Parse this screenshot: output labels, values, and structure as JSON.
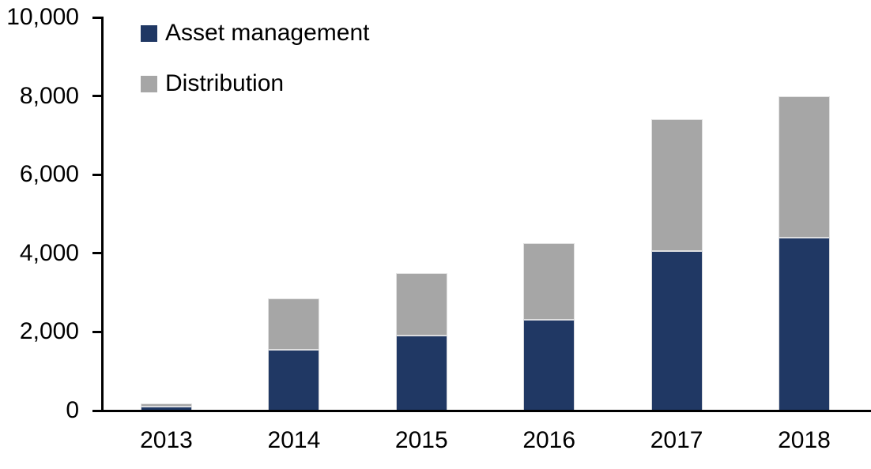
{
  "chart_data": {
    "type": "bar",
    "stacked": true,
    "categories": [
      "2013",
      "2014",
      "2015",
      "2016",
      "2017",
      "2018"
    ],
    "series": [
      {
        "name": "Asset management",
        "color": "#203864",
        "values": [
          100,
          1550,
          1900,
          2300,
          4050,
          4400
        ]
      },
      {
        "name": "Distribution",
        "color": "#a6a6a6",
        "values": [
          90,
          1300,
          1600,
          1950,
          3350,
          3600
        ]
      }
    ],
    "totals": [
      190,
      2850,
      3500,
      4250,
      7400,
      8000
    ],
    "yticks": [
      {
        "value": 0,
        "label": "0"
      },
      {
        "value": 2000,
        "label": "2,000"
      },
      {
        "value": 4000,
        "label": "4,000"
      },
      {
        "value": 6000,
        "label": "6,000"
      },
      {
        "value": 8000,
        "label": "8,000"
      },
      {
        "value": 10000,
        "label": "10,000"
      }
    ],
    "ylim": [
      0,
      10000
    ],
    "grid": false,
    "legend_position": "top-left",
    "axis_color": "#000000",
    "text_color": "#000000",
    "background_color": "#ffffff"
  }
}
